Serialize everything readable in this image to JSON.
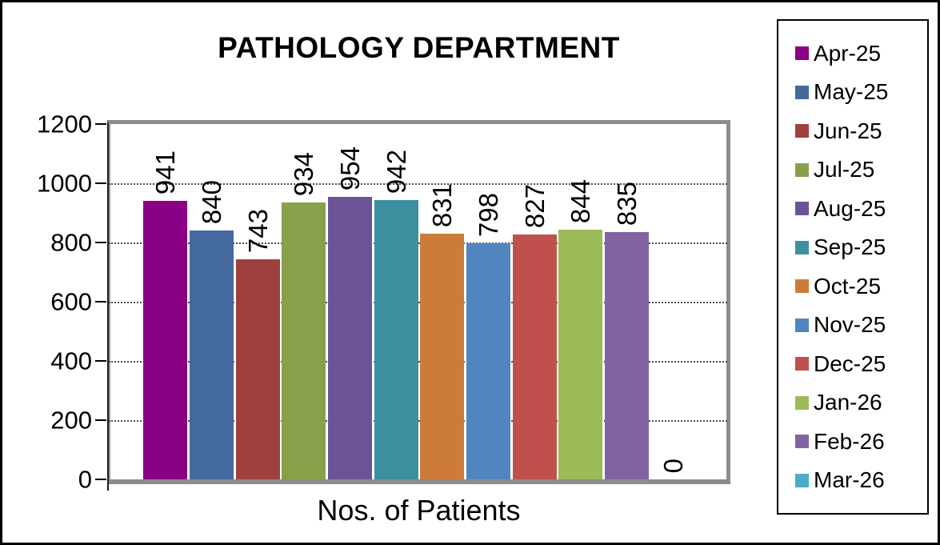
{
  "window": {
    "background_color": "#ffffff",
    "border_color": "#000000"
  },
  "chart_data": {
    "type": "bar",
    "title": "PATHOLOGY DEPARTMENT",
    "xlabel": "Nos. of Patients",
    "ylabel": "",
    "ylim": [
      0,
      1200
    ],
    "yticks": [
      0,
      200,
      400,
      600,
      800,
      1000,
      1200
    ],
    "grid": true,
    "gridline_values": [
      200,
      400,
      600,
      800,
      1000
    ],
    "legend_position": "right",
    "bar_labels_rotated": true,
    "categories": [
      "Apr-25",
      "May-25",
      "Jun-25",
      "Jul-25",
      "Aug-25",
      "Sep-25",
      "Oct-25",
      "Nov-25",
      "Dec-25",
      "Jan-26",
      "Feb-26",
      "Mar-26"
    ],
    "values": [
      941,
      840,
      743,
      934,
      954,
      942,
      831,
      798,
      827,
      844,
      835,
      0
    ],
    "colors": [
      "#8a0084",
      "#44699d",
      "#9e413e",
      "#89a04a",
      "#6a5496",
      "#3e8fa0",
      "#cc7c38",
      "#5185c0",
      "#c0504d",
      "#9bbb59",
      "#8064a2",
      "#4bacc6"
    ],
    "legend_entries": [
      {
        "label": "Apr-25",
        "color": "#8a0084"
      },
      {
        "label": "May-25",
        "color": "#44699d"
      },
      {
        "label": "Jun-25",
        "color": "#9e413e"
      },
      {
        "label": "Jul-25",
        "color": "#89a04a"
      },
      {
        "label": "Aug-25",
        "color": "#6a5496"
      },
      {
        "label": "Sep-25",
        "color": "#3e8fa0"
      },
      {
        "label": "Oct-25",
        "color": "#cc7c38"
      },
      {
        "label": "Nov-25",
        "color": "#5185c0"
      },
      {
        "label": "Dec-25",
        "color": "#c0504d"
      },
      {
        "label": "Jan-26",
        "color": "#9bbb59"
      },
      {
        "label": "Feb-26",
        "color": "#8064a2"
      },
      {
        "label": "Mar-26",
        "color": "#4bacc6"
      }
    ]
  }
}
